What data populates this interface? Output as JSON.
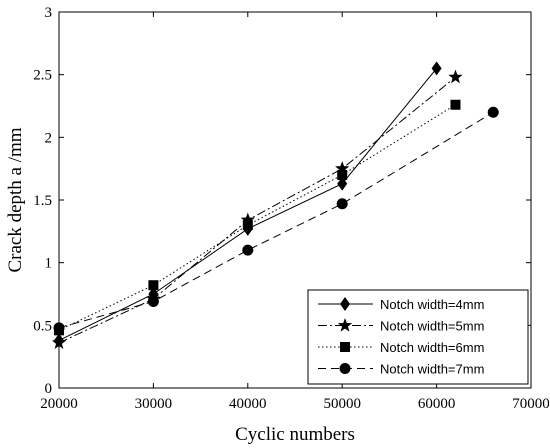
{
  "chart_data": {
    "type": "line",
    "title": "",
    "xlabel": "Cyclic numbers",
    "ylabel": "Crack depth a /mm",
    "xlim": [
      20000,
      70000
    ],
    "ylim": [
      0,
      3
    ],
    "xticks": [
      20000,
      30000,
      40000,
      50000,
      60000,
      70000
    ],
    "yticks": [
      0,
      0.5,
      1,
      1.5,
      2,
      2.5,
      3
    ],
    "xtick_labels": [
      "20000",
      "30000",
      "40000",
      "50000",
      "60000",
      "70000"
    ],
    "ytick_labels": [
      "0",
      "0.5",
      "1",
      "1.5",
      "2",
      "2.5",
      "3"
    ],
    "grid": false,
    "legend_position": "bottom-right",
    "series": [
      {
        "name": "Notch width=4mm",
        "marker": "diamond",
        "line_style": "solid",
        "points": [
          [
            20000,
            0.38
          ],
          [
            30000,
            0.75
          ],
          [
            40000,
            1.27
          ],
          [
            50000,
            1.63
          ],
          [
            60000,
            2.55
          ]
        ]
      },
      {
        "name": "Notch width=5mm",
        "marker": "star",
        "line_style": "dashdot",
        "points": [
          [
            20000,
            0.36
          ],
          [
            30000,
            0.71
          ],
          [
            40000,
            1.34
          ],
          [
            50000,
            1.75
          ],
          [
            62000,
            2.48
          ]
        ]
      },
      {
        "name": "Notch width=6mm",
        "marker": "square",
        "line_style": "dotted",
        "points": [
          [
            20000,
            0.46
          ],
          [
            30000,
            0.82
          ],
          [
            40000,
            1.3
          ],
          [
            50000,
            1.7
          ],
          [
            62000,
            2.26
          ]
        ]
      },
      {
        "name": "Notch width=7mm",
        "marker": "circle",
        "line_style": "dashed",
        "points": [
          [
            20000,
            0.48
          ],
          [
            30000,
            0.69
          ],
          [
            40000,
            1.1
          ],
          [
            50000,
            1.47
          ],
          [
            66000,
            2.2
          ]
        ]
      }
    ]
  }
}
